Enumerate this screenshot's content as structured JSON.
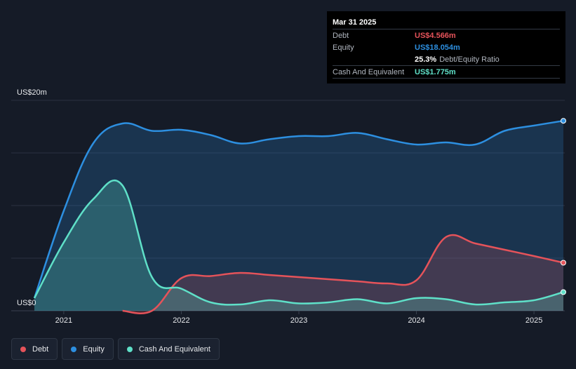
{
  "chart_data": {
    "type": "area",
    "y_unit_label_top": "US$20m",
    "y_unit_label_bottom": "US$0",
    "ylim": [
      0,
      20
    ],
    "xlim": [
      2020.75,
      2025.25
    ],
    "x_ticks": [
      {
        "value": 2021,
        "label": "2021"
      },
      {
        "value": 2022,
        "label": "2022"
      },
      {
        "value": 2023,
        "label": "2023"
      },
      {
        "value": 2024,
        "label": "2024"
      },
      {
        "value": 2025,
        "label": "2025"
      }
    ],
    "series": [
      {
        "name": "Equity",
        "color": "#2d8fe0",
        "x": [
          2020.75,
          2021.0,
          2021.25,
          2021.5,
          2021.75,
          2022.0,
          2022.25,
          2022.5,
          2022.75,
          2023.0,
          2023.25,
          2023.5,
          2023.75,
          2024.0,
          2024.25,
          2024.5,
          2024.75,
          2025.0,
          2025.25
        ],
        "values": [
          1.2,
          9.5,
          15.9,
          17.8,
          17.1,
          17.2,
          16.7,
          15.9,
          16.3,
          16.6,
          16.6,
          16.9,
          16.3,
          15.8,
          16.0,
          15.8,
          17.1,
          17.6,
          18.054
        ]
      },
      {
        "name": "Debt",
        "color": "#e5535a",
        "x": [
          2021.5,
          2021.75,
          2022.0,
          2022.25,
          2022.5,
          2022.75,
          2023.0,
          2023.25,
          2023.5,
          2023.75,
          2024.0,
          2024.25,
          2024.5,
          2024.75,
          2025.0,
          2025.25
        ],
        "values": [
          0.0,
          0.0,
          3.1,
          3.3,
          3.6,
          3.4,
          3.2,
          3.0,
          2.8,
          2.6,
          2.9,
          7.0,
          6.4,
          5.8,
          5.2,
          4.566
        ]
      },
      {
        "name": "Cash And Equivalent",
        "color": "#5fe0c8",
        "x": [
          2020.75,
          2021.0,
          2021.25,
          2021.5,
          2021.75,
          2022.0,
          2022.25,
          2022.5,
          2022.75,
          2023.0,
          2023.25,
          2023.5,
          2023.75,
          2024.0,
          2024.25,
          2024.5,
          2024.75,
          2025.0,
          2025.25
        ],
        "values": [
          1.2,
          6.5,
          10.6,
          11.9,
          3.2,
          2.1,
          0.8,
          0.6,
          1.0,
          0.7,
          0.8,
          1.1,
          0.7,
          1.2,
          1.1,
          0.6,
          0.8,
          1.0,
          1.775
        ]
      }
    ],
    "legend": "bottom-left",
    "grid": true
  },
  "tooltip": {
    "date": "Mar 31 2025",
    "rows": [
      {
        "label": "Debt",
        "value": "US$4.566m",
        "color": "#e5535a"
      },
      {
        "label": "Equity",
        "value": "US$18.054m",
        "color": "#2d8fe0"
      },
      {
        "label": "",
        "value": "25.3%",
        "sub": "Debt/Equity Ratio",
        "color": "#ffffff"
      },
      {
        "label": "Cash And Equivalent",
        "value": "US$1.775m",
        "color": "#5fe0c8"
      }
    ]
  },
  "legend": [
    {
      "label": "Debt",
      "color": "#e5535a"
    },
    {
      "label": "Equity",
      "color": "#2d8fe0"
    },
    {
      "label": "Cash And Equivalent",
      "color": "#5fe0c8"
    }
  ]
}
